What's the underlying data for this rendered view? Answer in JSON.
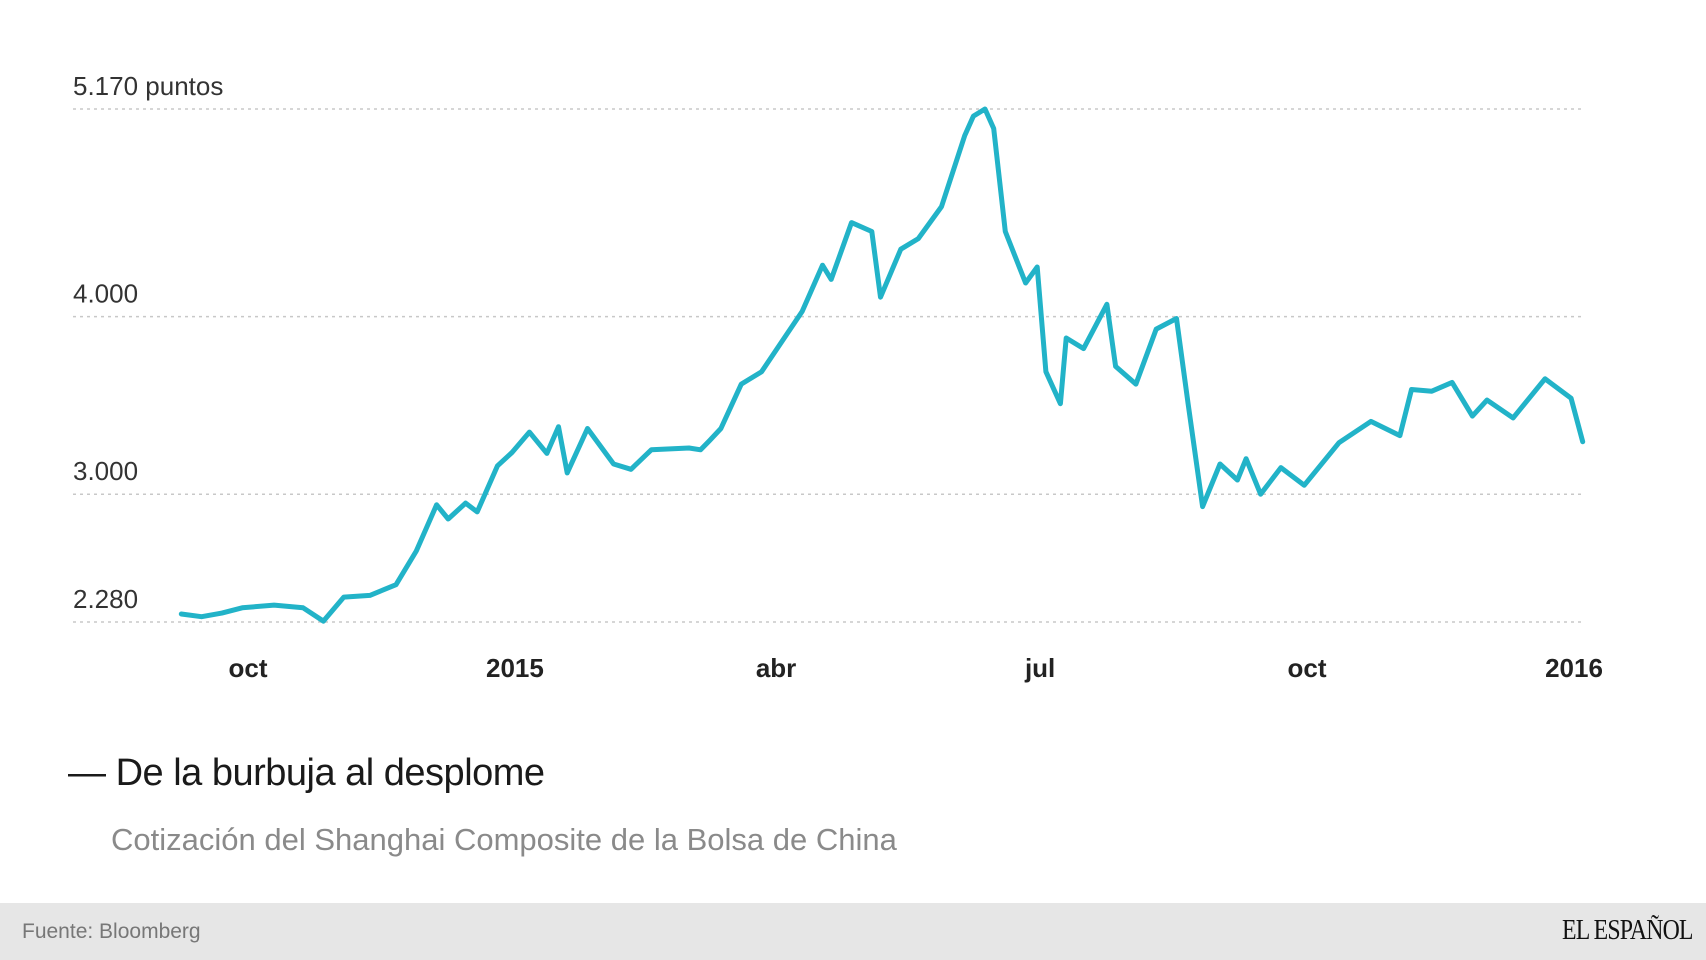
{
  "chart_data": {
    "type": "line",
    "title": "De la burbuja al desplome",
    "subtitle": "Cotización del Shanghai Composite de la Bolsa de China",
    "source": "Fuente: Bloomberg",
    "ylim": [
      2280,
      5170
    ],
    "y_ticks": [
      {
        "value": 5170,
        "label": "5.170 puntos"
      },
      {
        "value": 4000,
        "label": "4.000"
      },
      {
        "value": 3000,
        "label": "3.000"
      },
      {
        "value": 2280,
        "label": "2.280"
      }
    ],
    "x_ticks": [
      {
        "date": "2014-10-01",
        "label": "oct"
      },
      {
        "date": "2015-01-01",
        "label": "2015"
      },
      {
        "date": "2015-04-01",
        "label": "abr"
      },
      {
        "date": "2015-07-01",
        "label": "jul"
      },
      {
        "date": "2015-10-01",
        "label": "oct"
      },
      {
        "date": "2016-01-01",
        "label": "2016"
      }
    ],
    "grid": true,
    "line_color": "#22b3c8",
    "series": [
      {
        "x": [
          "2014-09-08",
          "2014-09-15",
          "2014-09-22",
          "2014-09-29",
          "2014-10-10",
          "2014-10-20",
          "2014-10-27",
          "2014-11-03",
          "2014-11-12",
          "2014-11-21",
          "2014-11-28",
          "2014-12-05",
          "2014-12-09",
          "2014-12-15",
          "2014-12-19",
          "2014-12-26",
          "2014-12-31",
          "2015-01-06",
          "2015-01-12",
          "2015-01-16",
          "2015-01-19",
          "2015-01-26",
          "2015-02-04",
          "2015-02-10",
          "2015-02-17",
          "2015-03-02",
          "2015-03-06",
          "2015-03-09",
          "2015-03-13",
          "2015-03-20",
          "2015-03-27",
          "2015-04-03",
          "2015-04-10",
          "2015-04-17",
          "2015-04-20",
          "2015-04-27",
          "2015-05-04",
          "2015-05-07",
          "2015-05-14",
          "2015-05-20",
          "2015-05-28",
          "2015-06-05",
          "2015-06-08",
          "2015-06-12",
          "2015-06-15",
          "2015-06-19",
          "2015-06-26",
          "2015-06-30",
          "2015-07-03",
          "2015-07-08",
          "2015-07-10",
          "2015-07-16",
          "2015-07-24",
          "2015-07-27",
          "2015-08-03",
          "2015-08-10",
          "2015-08-17",
          "2015-08-21",
          "2015-08-26",
          "2015-09-01",
          "2015-09-07",
          "2015-09-10",
          "2015-09-15",
          "2015-09-22",
          "2015-09-30",
          "2015-10-12",
          "2015-10-23",
          "2015-11-02",
          "2015-11-06",
          "2015-11-13",
          "2015-11-20",
          "2015-11-27",
          "2015-12-02",
          "2015-12-11",
          "2015-12-22",
          "2015-12-31",
          "2016-01-04"
        ],
        "values": [
          2325,
          2310,
          2330,
          2360,
          2375,
          2360,
          2285,
          2420,
          2430,
          2490,
          2680,
          2940,
          2860,
          2950,
          2900,
          3160,
          3235,
          3350,
          3230,
          3380,
          3120,
          3370,
          3170,
          3140,
          3250,
          3260,
          3250,
          3300,
          3370,
          3620,
          3690,
          3860,
          4030,
          4290,
          4210,
          4530,
          4480,
          4110,
          4380,
          4440,
          4620,
          5020,
          5130,
          5170,
          5060,
          4480,
          4190,
          4280,
          3690,
          3510,
          3880,
          3820,
          4070,
          3720,
          3620,
          3930,
          3990,
          3510,
          2930,
          3170,
          3080,
          3200,
          3000,
          3150,
          3050,
          3290,
          3410,
          3330,
          3590,
          3580,
          3630,
          3440,
          3530,
          3430,
          3650,
          3540,
          3296
        ]
      }
    ]
  },
  "footer": {
    "source": "Fuente: Bloomberg",
    "logo": "EL ESPAÑOL"
  }
}
